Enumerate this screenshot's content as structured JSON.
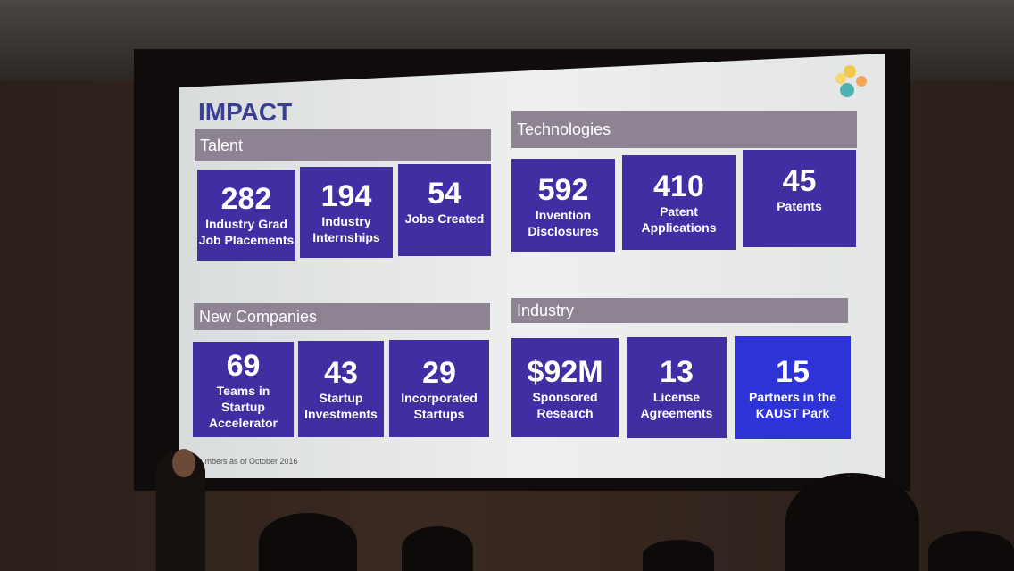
{
  "slide": {
    "title": "IMPACT",
    "footnote": "Numbers as of October 2016",
    "sections": [
      {
        "heading": "Talent",
        "stats": [
          {
            "value": "282",
            "label": "Industry Grad\nJob Placements"
          },
          {
            "value": "194",
            "label": "Industry\nInternships"
          },
          {
            "value": "54",
            "label": "Jobs Created"
          }
        ]
      },
      {
        "heading": "Technologies",
        "stats": [
          {
            "value": "592",
            "label": "Invention\nDisclosures"
          },
          {
            "value": "410",
            "label": "Patent\nApplications"
          },
          {
            "value": "45",
            "label": "Patents"
          }
        ]
      },
      {
        "heading": "New Companies",
        "stats": [
          {
            "value": "69",
            "label": "Teams in\nStartup\nAccelerator"
          },
          {
            "value": "43",
            "label": "Startup\nInvestments"
          },
          {
            "value": "29",
            "label": "Incorporated\nStartups"
          }
        ]
      },
      {
        "heading": "Industry",
        "stats": [
          {
            "value": "$92M",
            "label": "Sponsored\nResearch"
          },
          {
            "value": "13",
            "label": "License\nAgreements"
          },
          {
            "value": "15",
            "label": "Partners in the\nKAUST Park"
          }
        ]
      }
    ],
    "colors": {
      "box": "#3f2fa3",
      "highlight_box": "#2e33d8",
      "header_bar": "#8d8393",
      "title": "#3b3f8f"
    }
  }
}
